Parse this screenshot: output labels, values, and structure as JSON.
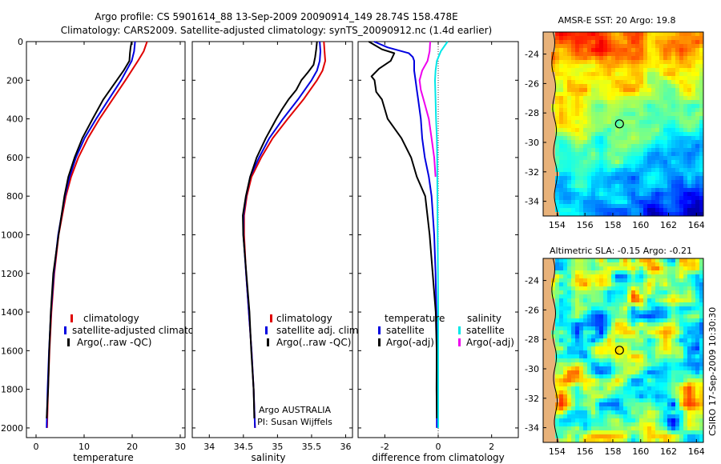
{
  "header": {
    "line1": "Argo profile: CS 5901614_88 13-Sep-2009 20090914_149 28.74S 158.478E",
    "line2": "Climatology: CARS2009. Satellite-adjusted climatology: synTS_20090912.nc (1.4d earlier)"
  },
  "side_label": "CSIRO 17-Sep-2009 10:30:30",
  "chart_data": [
    {
      "id": "temperature",
      "type": "line",
      "xlabel": "temperature",
      "ylabel": "",
      "xlim": [
        -2,
        31
      ],
      "ylim": [
        2050,
        0
      ],
      "xticks": [
        0,
        10,
        20,
        30
      ],
      "yticks": [
        0,
        200,
        400,
        600,
        800,
        1000,
        1200,
        1400,
        1600,
        1800,
        2000
      ],
      "legend": [
        "climatology",
        "satellite-adjusted climatology",
        "Argo(..raw -QC)"
      ],
      "series": [
        {
          "color": "#e00000",
          "depth": [
            0,
            50,
            100,
            200,
            300,
            400,
            500,
            600,
            700,
            800,
            1000,
            1200,
            1400,
            1600,
            1800,
            2000
          ],
          "values": [
            23.1,
            22.4,
            21.2,
            18.6,
            15.9,
            13.2,
            10.8,
            8.8,
            7.3,
            6.2,
            4.7,
            3.8,
            3.2,
            2.8,
            2.5,
            2.3
          ]
        },
        {
          "color": "#0000e0",
          "depth": [
            0,
            50,
            100,
            200,
            300,
            400,
            500,
            600,
            700,
            800,
            1000,
            1200,
            1400,
            1600,
            1800,
            2000
          ],
          "values": [
            20.6,
            20.4,
            19.9,
            17.7,
            15.1,
            12.5,
            10.1,
            8.3,
            7.0,
            6.0,
            4.6,
            3.7,
            3.1,
            2.7,
            2.4,
            2.2
          ]
        },
        {
          "color": "#000000",
          "depth": [
            0,
            30,
            60,
            100,
            150,
            200,
            250,
            300,
            400,
            500,
            600,
            700,
            800,
            1000,
            1200,
            1400,
            1600,
            1800,
            1950
          ],
          "values": [
            19.9,
            19.7,
            19.5,
            19.3,
            18.3,
            16.8,
            15.3,
            14.1,
            11.8,
            9.6,
            7.9,
            6.8,
            5.9,
            4.6,
            3.7,
            3.1,
            2.7,
            2.4,
            2.2
          ]
        }
      ]
    },
    {
      "id": "salinity",
      "type": "line",
      "xlabel": "salinity",
      "ylabel": "",
      "xlim": [
        33.75,
        36.1
      ],
      "ylim": [
        2050,
        0
      ],
      "xticks": [
        34,
        34.5,
        35,
        35.5,
        36
      ],
      "legend": [
        "climatology",
        "satellite adj. clim.",
        "Argo(..raw -QC)"
      ],
      "annotation": [
        "Argo AUSTRALIA",
        "PI: Susan Wijffels"
      ],
      "series": [
        {
          "color": "#e00000",
          "depth": [
            0,
            50,
            100,
            150,
            200,
            300,
            400,
            500,
            600,
            700,
            800,
            900,
            1000,
            1200,
            1400,
            1600,
            1800,
            2000
          ],
          "values": [
            35.68,
            35.69,
            35.7,
            35.66,
            35.58,
            35.38,
            35.15,
            34.93,
            34.76,
            34.62,
            34.55,
            34.51,
            34.51,
            34.54,
            34.58,
            34.62,
            34.65,
            34.67
          ]
        },
        {
          "color": "#0000e0",
          "depth": [
            0,
            50,
            100,
            150,
            200,
            300,
            400,
            500,
            600,
            700,
            800,
            900,
            1000,
            1200,
            1400,
            1600,
            1800,
            2000
          ],
          "values": [
            35.62,
            35.63,
            35.62,
            35.58,
            35.5,
            35.3,
            35.08,
            34.88,
            34.73,
            34.6,
            34.54,
            34.5,
            34.5,
            34.54,
            34.58,
            34.62,
            34.65,
            34.67
          ]
        },
        {
          "color": "#000000",
          "depth": [
            0,
            40,
            80,
            120,
            160,
            200,
            250,
            300,
            350,
            400,
            500,
            600,
            700,
            800,
            900,
            1000,
            1200,
            1400,
            1600,
            1800,
            1950
          ],
          "values": [
            35.58,
            35.57,
            35.55,
            35.52,
            35.45,
            35.35,
            35.27,
            35.17,
            35.07,
            34.98,
            34.82,
            34.7,
            34.6,
            34.53,
            34.5,
            34.5,
            34.54,
            34.58,
            34.62,
            34.65,
            34.66
          ]
        }
      ]
    },
    {
      "id": "difference",
      "type": "line",
      "xlabel": "difference from climatology",
      "ylabel": "",
      "xlim": [
        -3,
        3
      ],
      "ylim": [
        2050,
        0
      ],
      "xticks": [
        -2,
        0,
        2
      ],
      "legend_groups": [
        {
          "heading": "temperature",
          "items": [
            "satellite",
            "Argo(-adj)"
          ]
        },
        {
          "heading": "salinity",
          "items": [
            "satellite",
            "Argo(-adj)"
          ]
        }
      ],
      "series": [
        {
          "color": "#0000e0",
          "depth": [
            0,
            30,
            60,
            80,
            100,
            150,
            200,
            250,
            300,
            400,
            500,
            600,
            700,
            800,
            1000,
            1200,
            1400,
            1600,
            1800,
            2000
          ],
          "values": [
            -2.4,
            -1.9,
            -1.1,
            -0.95,
            -0.9,
            -0.9,
            -0.85,
            -0.8,
            -0.75,
            -0.65,
            -0.6,
            -0.5,
            -0.35,
            -0.25,
            -0.15,
            -0.1,
            -0.07,
            -0.05,
            -0.05,
            -0.05
          ]
        },
        {
          "color": "#000000",
          "depth": [
            0,
            40,
            60,
            100,
            140,
            180,
            200,
            260,
            300,
            400,
            500,
            600,
            700,
            800,
            1000,
            1200,
            1400,
            1600,
            1800,
            1950
          ],
          "values": [
            -2.6,
            -2.1,
            -1.65,
            -1.8,
            -2.2,
            -2.5,
            -2.4,
            -2.3,
            -2.1,
            -1.9,
            -1.4,
            -1.0,
            -0.8,
            -0.5,
            -0.3,
            -0.2,
            -0.1,
            -0.08,
            -0.05,
            -0.05
          ]
        },
        {
          "color": "#00e8e8",
          "depth": [
            0,
            50,
            100,
            150,
            200,
            300,
            400,
            500,
            600,
            800,
            1000,
            1200,
            1400,
            1600,
            1800,
            2000
          ],
          "values": [
            0.35,
            0.1,
            -0.05,
            -0.1,
            -0.12,
            -0.1,
            -0.08,
            -0.05,
            -0.04,
            -0.03,
            -0.02,
            -0.01,
            0.0,
            0.0,
            0.0,
            0.0
          ]
        },
        {
          "color": "#ee00ee",
          "depth": [
            0,
            50,
            100,
            150,
            200,
            250,
            300,
            350,
            400,
            500,
            600,
            700
          ],
          "values": [
            -0.3,
            -0.32,
            -0.4,
            -0.6,
            -0.7,
            -0.65,
            -0.55,
            -0.45,
            -0.35,
            -0.25,
            -0.15,
            -0.1
          ]
        }
      ],
      "zero_line": true
    },
    {
      "id": "sst-map",
      "type": "heatmap",
      "title": "AMSR-E SST: 20 Argo: 19.8",
      "xlim": [
        153,
        164.5
      ],
      "ylim": [
        -35,
        -22.5
      ],
      "xticks": [
        154,
        156,
        158,
        160,
        162,
        164
      ],
      "yticks": [
        -24,
        -26,
        -28,
        -30,
        -32,
        -34
      ],
      "profile_location": [
        158.478,
        -28.74
      ]
    },
    {
      "id": "sla-map",
      "type": "heatmap",
      "title": "Altimetric SLA: -0.15 Argo: -0.21",
      "xlim": [
        153,
        164.5
      ],
      "ylim": [
        -35,
        -22.5
      ],
      "xticks": [
        154,
        156,
        158,
        160,
        162,
        164
      ],
      "yticks": [
        -24,
        -26,
        -28,
        -30,
        -32,
        -34
      ],
      "profile_location": [
        158.478,
        -28.74
      ]
    }
  ]
}
